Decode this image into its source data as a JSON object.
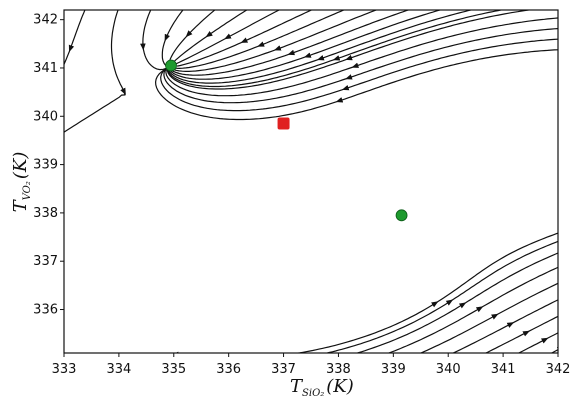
{
  "chart_data": {
    "type": "streamplot",
    "xlabel": {
      "main": "T",
      "sub": "SiO₂",
      "unit": "(K)"
    },
    "ylabel": {
      "main": "T",
      "sub": "VO₂",
      "unit": "(K)"
    },
    "xlim": [
      333,
      342
    ],
    "ylim": [
      335.1,
      342.2
    ],
    "xticks": [
      "333",
      "334",
      "335",
      "336",
      "337",
      "338",
      "339",
      "340",
      "341",
      "342"
    ],
    "yticks": [
      "336",
      "337",
      "338",
      "339",
      "340",
      "341",
      "342"
    ],
    "grid": false,
    "fixed_points": [
      {
        "x": 334.95,
        "y": 341.05,
        "color": "#1e9a2e",
        "kind": "stable"
      },
      {
        "x": 337.0,
        "y": 339.85,
        "color": "#e02020",
        "kind": "saddle"
      },
      {
        "x": 339.15,
        "y": 337.95,
        "color": "#1e9a2e",
        "kind": "stable"
      }
    ],
    "line_color": "#111111"
  }
}
